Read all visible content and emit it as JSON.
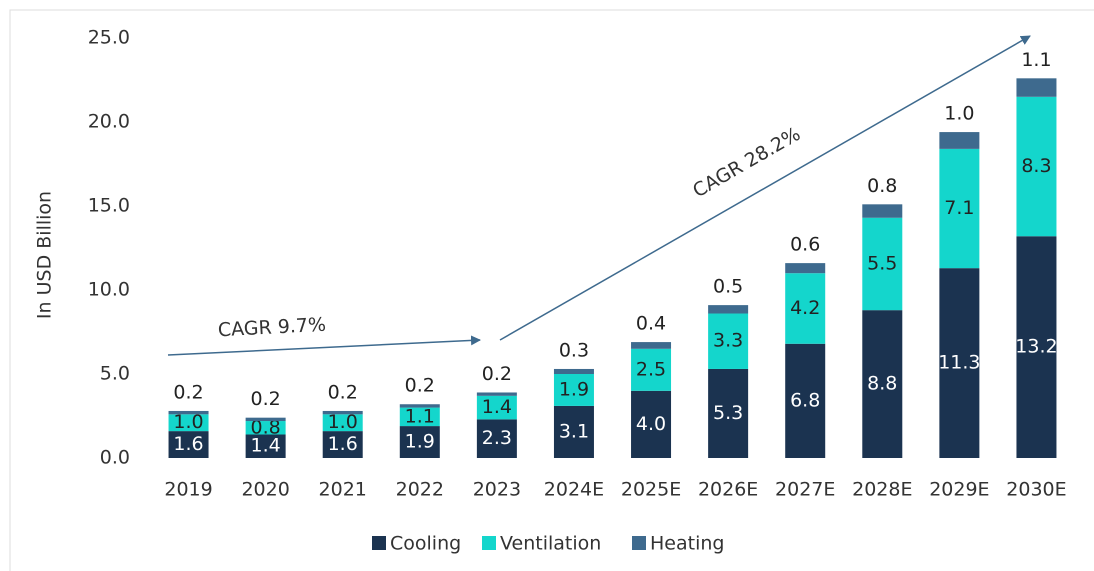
{
  "chart_data": {
    "type": "stacked_bar",
    "y_label": "In USD Billion",
    "categories": [
      "2019",
      "2020",
      "2021",
      "2022",
      "2023",
      "2024E",
      "2025E",
      "2026E",
      "2027E",
      "2028E",
      "2029E",
      "2030E"
    ],
    "series": [
      {
        "name": "Cooling",
        "color": "#1b3350",
        "values": [
          1.6,
          1.4,
          1.6,
          1.9,
          2.3,
          3.1,
          4.0,
          5.3,
          6.8,
          8.8,
          11.3,
          13.2
        ],
        "value_labels": [
          "1.6",
          "1.4",
          "1.6",
          "1.9",
          "2.3",
          "3.1",
          "4.0",
          "5.3",
          "6.8",
          "8.8",
          "11.3",
          "13.2"
        ]
      },
      {
        "name": "Ventilation",
        "color": "#14d6cc",
        "values": [
          1.0,
          0.8,
          1.0,
          1.1,
          1.4,
          1.9,
          2.5,
          3.3,
          4.2,
          5.5,
          7.1,
          8.3
        ],
        "value_labels": [
          "1.0",
          "0.8",
          "1.0",
          "1.1",
          "1.4",
          "1.9",
          "2.5",
          "3.3",
          "4.2",
          "5.5",
          "7.1",
          "8.3"
        ]
      },
      {
        "name": "Heating",
        "color": "#3e6a8e",
        "values": [
          0.2,
          0.2,
          0.2,
          0.2,
          0.2,
          0.3,
          0.4,
          0.5,
          0.6,
          0.8,
          1.0,
          1.1
        ],
        "value_labels": [
          "0.2",
          "0.2",
          "0.2",
          "0.2",
          "0.2",
          "0.3",
          "0.4",
          "0.5",
          "0.6",
          "0.8",
          "1.0",
          "1.1"
        ]
      }
    ],
    "ylim": [
      0,
      25
    ],
    "yticks": [
      {
        "value": 0,
        "label": "0.0"
      },
      {
        "value": 5,
        "label": "5.0"
      },
      {
        "value": 10,
        "label": "10.0"
      },
      {
        "value": 15,
        "label": "15.0"
      },
      {
        "value": 20,
        "label": "20.0"
      },
      {
        "value": 25,
        "label": "25.0"
      }
    ],
    "annotations": [
      "CAGR 9.7%",
      "CAGR 28.2%"
    ],
    "legend": "bottom"
  }
}
